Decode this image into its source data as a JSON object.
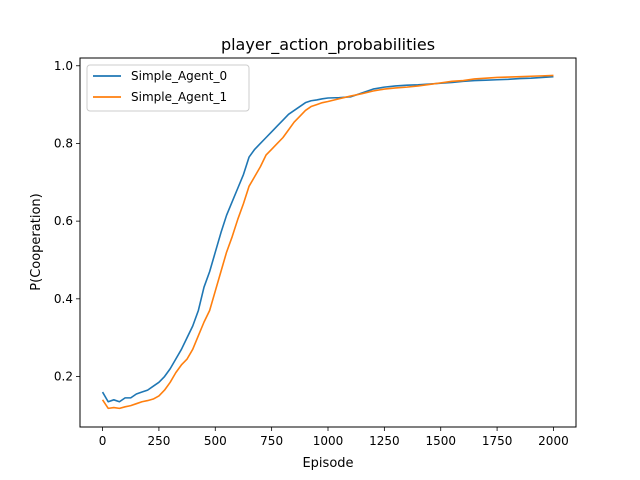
{
  "chart_data": {
    "type": "line",
    "title": "player_action_probabilities",
    "xlabel": "Episode",
    "ylabel": "P(Cooperation)",
    "xlim": [
      -100,
      2100
    ],
    "ylim": [
      0.07,
      1.02
    ],
    "xticks": [
      0,
      250,
      500,
      750,
      1000,
      1250,
      1500,
      1750,
      2000
    ],
    "xtick_labels": [
      "0",
      "250",
      "500",
      "750",
      "1000",
      "1250",
      "1500",
      "1750",
      "2000"
    ],
    "yticks": [
      0.2,
      0.4,
      0.6,
      0.8,
      1.0
    ],
    "ytick_labels": [
      "0.2",
      "0.4",
      "0.6",
      "0.8",
      "1.0"
    ],
    "grid": false,
    "legend_position": "top-left",
    "series": [
      {
        "name": "Simple_Agent_0",
        "color": "#1f77b4",
        "x": [
          0,
          25,
          50,
          75,
          100,
          125,
          150,
          175,
          200,
          225,
          250,
          275,
          300,
          325,
          350,
          375,
          400,
          425,
          450,
          475,
          500,
          525,
          550,
          575,
          600,
          625,
          650,
          675,
          700,
          725,
          750,
          775,
          800,
          825,
          850,
          875,
          900,
          925,
          950,
          975,
          1000,
          1050,
          1100,
          1150,
          1200,
          1250,
          1300,
          1350,
          1400,
          1450,
          1500,
          1550,
          1600,
          1650,
          1700,
          1750,
          1800,
          1850,
          1900,
          1950,
          2000
        ],
        "values": [
          0.16,
          0.135,
          0.14,
          0.135,
          0.145,
          0.145,
          0.155,
          0.16,
          0.165,
          0.175,
          0.185,
          0.2,
          0.22,
          0.245,
          0.27,
          0.3,
          0.33,
          0.37,
          0.43,
          0.47,
          0.52,
          0.57,
          0.615,
          0.65,
          0.685,
          0.72,
          0.765,
          0.785,
          0.8,
          0.815,
          0.83,
          0.845,
          0.86,
          0.875,
          0.885,
          0.895,
          0.905,
          0.91,
          0.912,
          0.915,
          0.917,
          0.918,
          0.92,
          0.93,
          0.94,
          0.945,
          0.948,
          0.95,
          0.951,
          0.953,
          0.955,
          0.957,
          0.96,
          0.962,
          0.963,
          0.964,
          0.965,
          0.967,
          0.968,
          0.97,
          0.972
        ]
      },
      {
        "name": "Simple_Agent_1",
        "color": "#ff7f0e",
        "x": [
          0,
          25,
          50,
          75,
          100,
          125,
          150,
          175,
          200,
          225,
          250,
          275,
          300,
          325,
          350,
          375,
          400,
          425,
          450,
          475,
          500,
          525,
          550,
          575,
          600,
          625,
          650,
          675,
          700,
          725,
          750,
          775,
          800,
          825,
          850,
          875,
          900,
          925,
          950,
          975,
          1000,
          1050,
          1100,
          1150,
          1200,
          1250,
          1300,
          1350,
          1400,
          1450,
          1500,
          1550,
          1600,
          1650,
          1700,
          1750,
          1800,
          1850,
          1900,
          1950,
          2000
        ],
        "values": [
          0.14,
          0.118,
          0.12,
          0.118,
          0.122,
          0.125,
          0.13,
          0.135,
          0.138,
          0.142,
          0.15,
          0.165,
          0.185,
          0.21,
          0.23,
          0.245,
          0.27,
          0.305,
          0.34,
          0.37,
          0.42,
          0.47,
          0.52,
          0.56,
          0.605,
          0.645,
          0.69,
          0.715,
          0.74,
          0.77,
          0.785,
          0.8,
          0.815,
          0.835,
          0.855,
          0.87,
          0.885,
          0.895,
          0.9,
          0.905,
          0.908,
          0.915,
          0.922,
          0.928,
          0.935,
          0.94,
          0.943,
          0.945,
          0.948,
          0.952,
          0.956,
          0.96,
          0.962,
          0.966,
          0.968,
          0.97,
          0.971,
          0.972,
          0.973,
          0.974,
          0.975
        ]
      }
    ]
  }
}
